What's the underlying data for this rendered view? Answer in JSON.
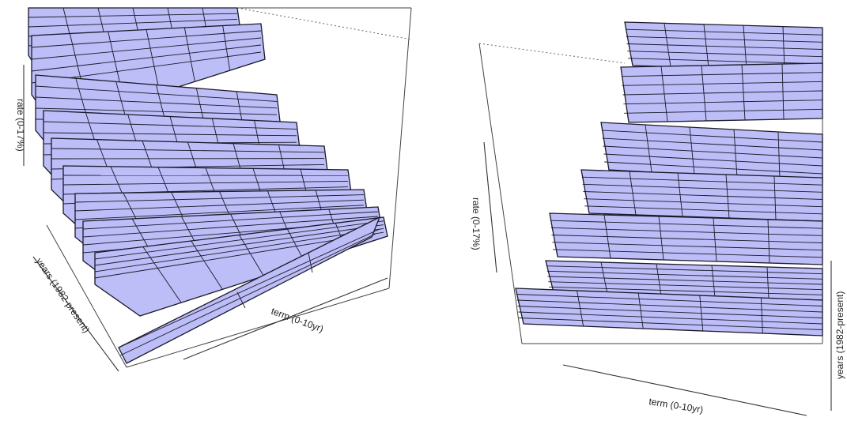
{
  "chart_data": [
    {
      "type": "surface",
      "view": "left",
      "xlabel": "term (0-10yr)",
      "ylabel": "years (1982-present)",
      "zlabel": "rate (0-17%)",
      "x": "term (0-10yr)",
      "y": "years (1982-present)",
      "z": "rate (0-17%)",
      "surface_color": "#bdbdf7",
      "grid": true
    },
    {
      "type": "surface",
      "view": "right",
      "xlabel": "term (0-10yr)",
      "ylabel": "years (1982-present)",
      "zlabel": "rate (0-17%)",
      "x": "term (0-10yr)",
      "y": "years (1982-present)",
      "z": "rate (0-17%)",
      "surface_color": "#bdbdf7",
      "grid": true
    }
  ]
}
